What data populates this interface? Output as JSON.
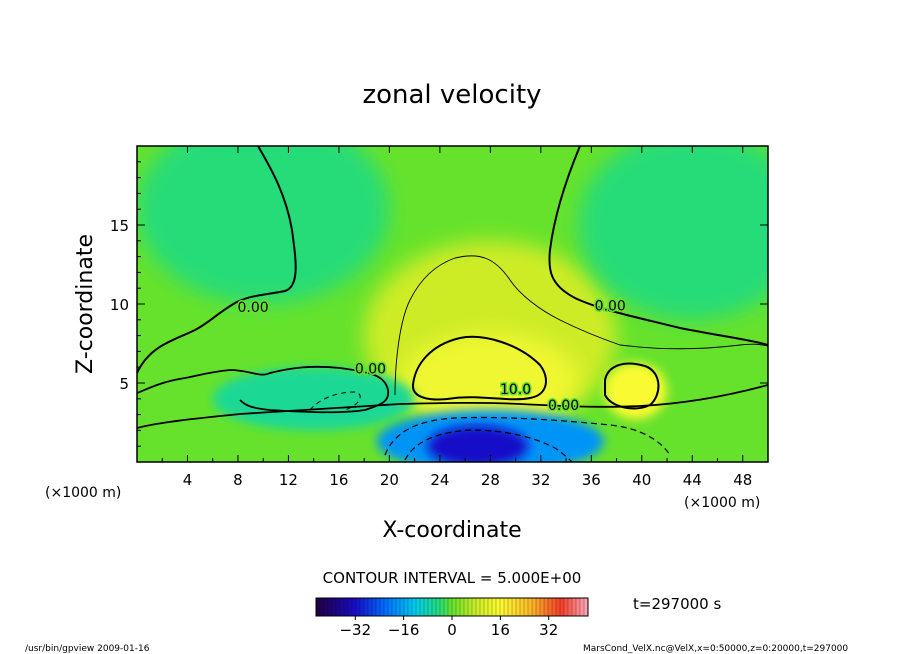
{
  "chart_data": {
    "type": "heatmap",
    "title": "zonal velocity",
    "xlabel": "X-coordinate",
    "ylabel": "Z-coordinate",
    "x_unit_note_left": "(×1000 m)",
    "x_unit_note_right": "(×1000 m)",
    "xlim": [
      0,
      50
    ],
    "ylim": [
      0,
      20
    ],
    "x_ticks": [
      4,
      8,
      12,
      16,
      20,
      24,
      28,
      32,
      36,
      40,
      44,
      48
    ],
    "y_ticks": [
      5,
      10,
      15
    ],
    "contour_labels": [
      {
        "text": "0.00",
        "x": 9.2,
        "y": 9.5
      },
      {
        "text": "0.00",
        "x": 18.5,
        "y": 5.6
      },
      {
        "text": "0.00",
        "x": 37.5,
        "y": 9.6
      },
      {
        "text": "10.0",
        "x": 30.0,
        "y": 4.3
      },
      {
        "text": "0.00",
        "x": 33.8,
        "y": 3.3
      }
    ],
    "field_features": [
      {
        "value": 14,
        "x": 28,
        "y": 5.2,
        "rx": 7,
        "ry": 3
      },
      {
        "value": 16,
        "x": 39.5,
        "y": 4.5,
        "rx": 2.5,
        "ry": 1.8
      },
      {
        "value": 8,
        "x": 28,
        "y": 8,
        "rx": 10,
        "ry": 6
      },
      {
        "value": -32,
        "x": 27,
        "y": 1,
        "rx": 4,
        "ry": 1.3
      },
      {
        "value": -18,
        "x": 28,
        "y": 1.3,
        "rx": 9,
        "ry": 2
      },
      {
        "value": -6,
        "x": 14,
        "y": 4,
        "rx": 8,
        "ry": 2
      },
      {
        "value": -4,
        "x": 10,
        "y": 16,
        "rx": 10,
        "ry": 6
      },
      {
        "value": -4,
        "x": 44,
        "y": 15,
        "rx": 9,
        "ry": 6
      }
    ],
    "contour_interval_label": "CONTOUR INTERVAL = 5.000E+00",
    "colorbar": {
      "min": -45,
      "max": 45,
      "tick_values": [
        -32,
        -16,
        0,
        16,
        32
      ],
      "tick_labels": [
        "−32",
        "−16",
        "0",
        "16",
        "32"
      ]
    },
    "time_label": "t=297000 s",
    "footer_left": "/usr/bin/gpview  2009-01-16",
    "footer_right": "MarsCond_VelX.nc@VelX,x=0:50000,z=0:20000,t=297000"
  }
}
